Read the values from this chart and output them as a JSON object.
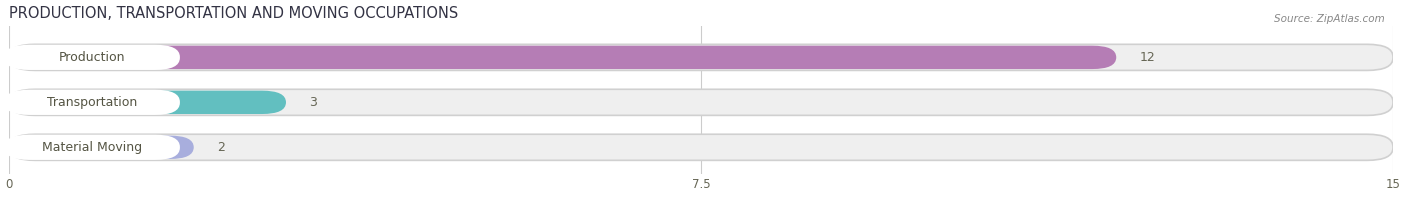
{
  "title": "PRODUCTION, TRANSPORTATION AND MOVING OCCUPATIONS",
  "source": "Source: ZipAtlas.com",
  "categories": [
    "Production",
    "Transportation",
    "Material Moving"
  ],
  "values": [
    12,
    3,
    2
  ],
  "bar_colors": [
    "#b57db5",
    "#62bfc0",
    "#a8aedd"
  ],
  "xlim": [
    0,
    15
  ],
  "xticks": [
    0,
    7.5,
    15
  ],
  "background_color": "#ffffff",
  "title_fontsize": 10.5,
  "label_fontsize": 9,
  "bar_height": 0.52,
  "label_text_color": "#555544",
  "value_text_color": "#666655"
}
